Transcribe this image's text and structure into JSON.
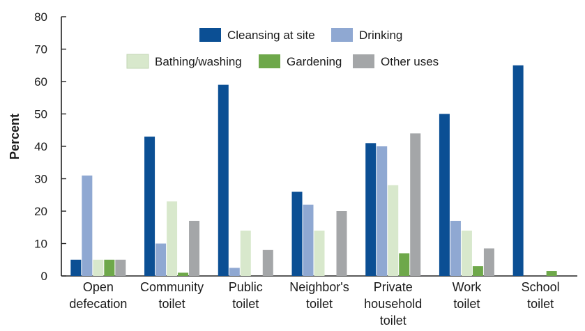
{
  "chart_data": {
    "type": "bar",
    "title": "",
    "xlabel": "",
    "ylabel": "Percent",
    "ylim": [
      0,
      80
    ],
    "yticks": [
      0,
      10,
      20,
      30,
      40,
      50,
      60,
      70,
      80
    ],
    "grid": false,
    "legend_position": "top",
    "categories": [
      [
        "Open",
        "defecation"
      ],
      [
        "Community",
        "toilet"
      ],
      [
        "Public",
        "toilet"
      ],
      [
        "Neighbor's",
        "toilet"
      ],
      [
        "Private",
        "household",
        "toilet"
      ],
      [
        "Work",
        "toilet"
      ],
      [
        "School",
        "toilet"
      ]
    ],
    "series": [
      {
        "name": "Cleansing at site",
        "color": "#0b4f94",
        "values": [
          5,
          43,
          59,
          26,
          41,
          50,
          65
        ]
      },
      {
        "name": "Drinking",
        "color": "#8fa8d2",
        "values": [
          31,
          10,
          2.5,
          22,
          40,
          17,
          0
        ]
      },
      {
        "name": "Bathing/washing",
        "color": "#d8e8cc",
        "values": [
          5,
          23,
          14,
          14,
          28,
          14,
          0
        ]
      },
      {
        "name": "Gardening",
        "color": "#6ea84a",
        "values": [
          5,
          1,
          0,
          0,
          7,
          3,
          1.5
        ]
      },
      {
        "name": "Other uses",
        "color": "#a4a6a8",
        "values": [
          5,
          17,
          8,
          20,
          44,
          8.5,
          0
        ]
      }
    ]
  }
}
